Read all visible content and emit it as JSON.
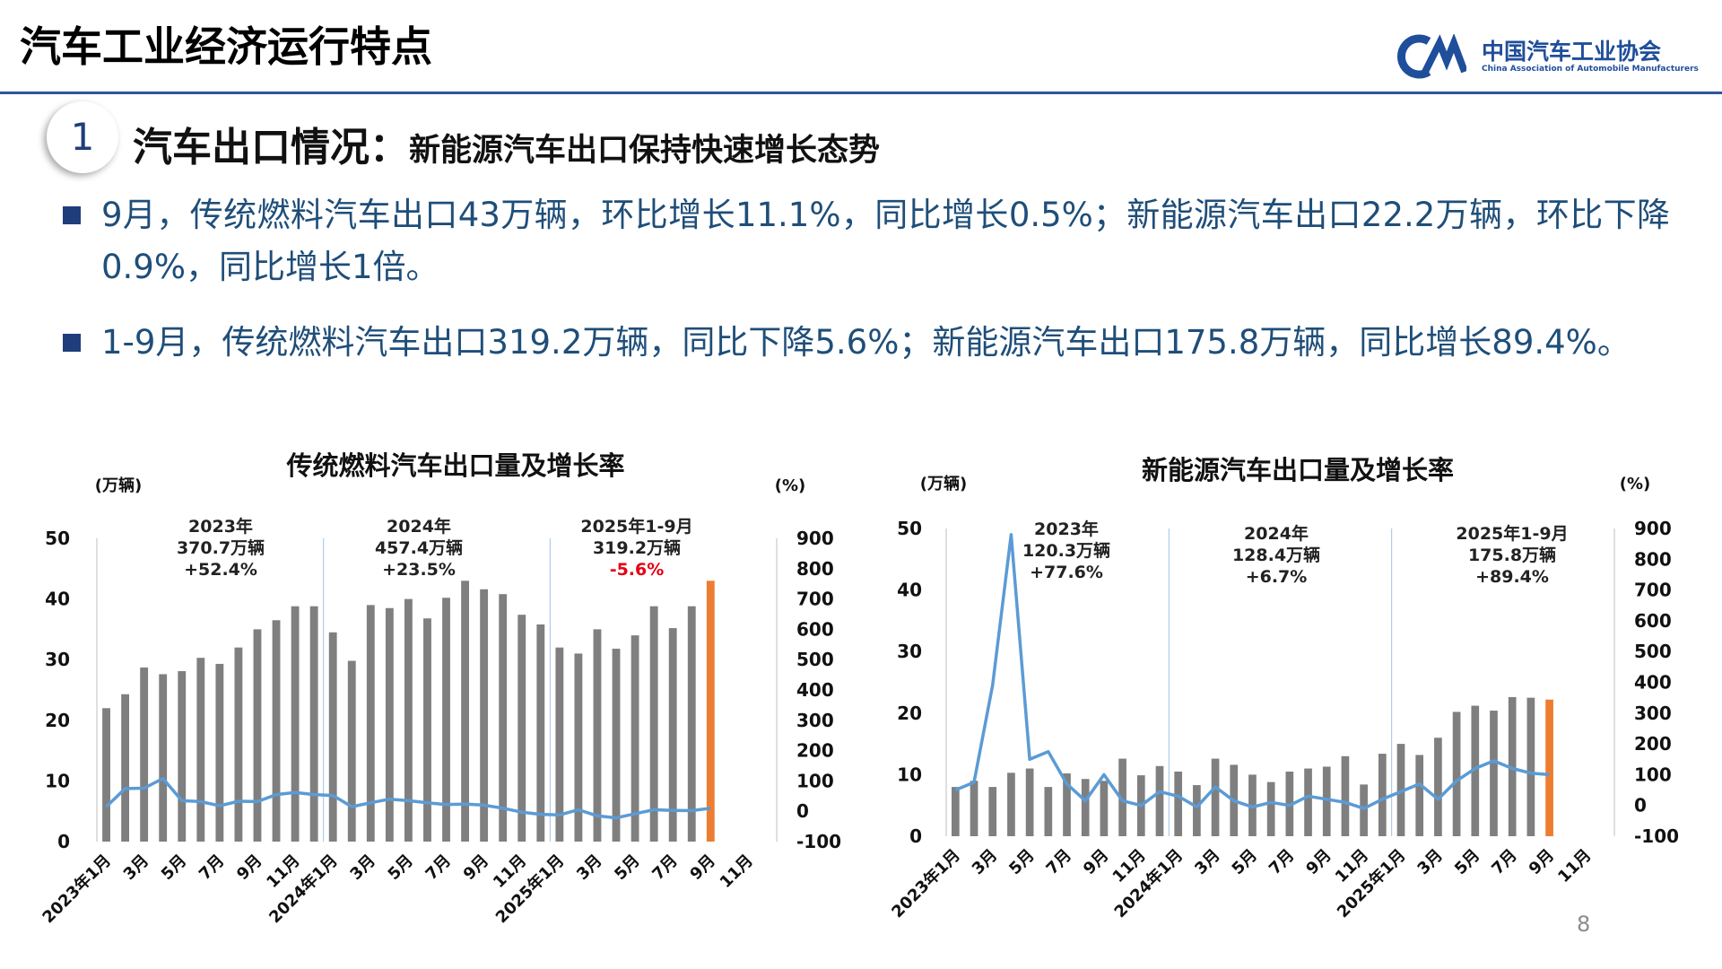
{
  "header": {
    "title": "汽车工业经济运行特点",
    "org_name": "中国汽车工业协会",
    "org_name_en": "China Association of Automobile Manufacturers"
  },
  "section": {
    "number": "1",
    "title": "汽车出口情况：",
    "subtitle": "新能源汽车出口保持快速增长态势"
  },
  "bullets": [
    "9月，传统燃料汽车出口43万辆，环比增长11.1%，同比增长0.5%；新能源汽车出口22.2万辆，环比下降0.9%，同比增长1倍。",
    "1-9月，传统燃料汽车出口319.2万辆，同比下降5.6%；新能源汽车出口175.8万辆，同比增长89.4%。"
  ],
  "page_number": "8",
  "chart_data": [
    {
      "type": "bar-line",
      "title": "传统燃料汽车出口量及增长率",
      "y_unit": "(万辆)",
      "y2_unit": "(%)",
      "categories": [
        "2023年1月",
        null,
        "3月",
        null,
        "5月",
        null,
        "7月",
        null,
        "9月",
        null,
        "11月",
        null,
        "2024年1月",
        null,
        "3月",
        null,
        "5月",
        null,
        "7月",
        null,
        "9月",
        null,
        "11月",
        null,
        "2025年1月",
        null,
        "3月",
        null,
        "5月",
        null,
        "7月",
        null,
        "9月",
        null,
        "11月",
        null
      ],
      "ylim": [
        0,
        50
      ],
      "yticks": [
        0,
        10,
        20,
        30,
        40,
        50
      ],
      "y2lim": [
        -100,
        900
      ],
      "y2ticks": [
        -100,
        0,
        100,
        200,
        300,
        400,
        500,
        600,
        700,
        800,
        900
      ],
      "series": [
        {
          "kind": "bar",
          "color": "#7f7f7f",
          "colors": [
            "#7f7f7f",
            "#7f7f7f",
            "#7f7f7f",
            "#7f7f7f",
            "#7f7f7f",
            "#7f7f7f",
            "#7f7f7f",
            "#7f7f7f",
            "#7f7f7f",
            "#7f7f7f",
            "#7f7f7f",
            "#7f7f7f",
            "#7f7f7f",
            "#7f7f7f",
            "#7f7f7f",
            "#7f7f7f",
            "#7f7f7f",
            "#7f7f7f",
            "#7f7f7f",
            "#7f7f7f",
            "#7f7f7f",
            "#7f7f7f",
            "#7f7f7f",
            "#7f7f7f",
            "#7f7f7f",
            "#7f7f7f",
            "#7f7f7f",
            "#7f7f7f",
            "#7f7f7f",
            "#7f7f7f",
            "#7f7f7f",
            "#7f7f7f",
            "#ed7d31",
            "#7f7f7f",
            "#7f7f7f",
            "#7f7f7f"
          ],
          "values": [
            22,
            24.3,
            28.7,
            27.6,
            28.1,
            30.3,
            29.3,
            32,
            35,
            36.5,
            38.8,
            38.8,
            34.5,
            29.8,
            39,
            38.5,
            40,
            36.8,
            40.2,
            43,
            41.6,
            40.8,
            37.4,
            35.8,
            32,
            31,
            35,
            31.8,
            34,
            38.8,
            35.2,
            38.8,
            43,
            null,
            null,
            null
          ]
        },
        {
          "kind": "line",
          "axis": "y2",
          "color": "#5b9bd5",
          "values": [
            15,
            75,
            76,
            108,
            35,
            32,
            18,
            33,
            32,
            55,
            62,
            55,
            52,
            15,
            28,
            40,
            35,
            28,
            22,
            24,
            20,
            10,
            -3,
            -10,
            -12,
            5,
            -15,
            -22,
            -8,
            5,
            3,
            2,
            10,
            null,
            null,
            null
          ]
        }
      ],
      "annotations": [
        {
          "lines": [
            "2023年",
            "370.7万辆",
            "+52.4%"
          ],
          "colors": [
            "#222",
            "#222",
            "#222"
          ]
        },
        {
          "lines": [
            "2024年",
            "457.4万辆",
            "+23.5%"
          ],
          "colors": [
            "#222",
            "#222",
            "#222"
          ]
        },
        {
          "lines": [
            "2025年1-9月",
            "319.2万辆",
            "-5.6%"
          ],
          "colors": [
            "#222",
            "#222",
            "#e60012"
          ]
        }
      ]
    },
    {
      "type": "bar-line",
      "title": "新能源汽车出口量及增长率",
      "y_unit": "(万辆)",
      "y2_unit": "(%)",
      "categories": [
        "2023年1月",
        null,
        "3月",
        null,
        "5月",
        null,
        "7月",
        null,
        "9月",
        null,
        "11月",
        null,
        "2024年1月",
        null,
        "3月",
        null,
        "5月",
        null,
        "7月",
        null,
        "9月",
        null,
        "11月",
        null,
        "2025年1月",
        null,
        "3月",
        null,
        "5月",
        null,
        "7月",
        null,
        "9月",
        null,
        "11月",
        null
      ],
      "ylim": [
        0,
        50
      ],
      "yticks": [
        0,
        10,
        20,
        30,
        40,
        50
      ],
      "y2lim": [
        -100,
        900
      ],
      "y2ticks": [
        -100,
        0,
        100,
        200,
        300,
        400,
        500,
        600,
        700,
        800,
        900
      ],
      "series": [
        {
          "kind": "bar",
          "color": "#7f7f7f",
          "colors": [
            "#7f7f7f",
            "#7f7f7f",
            "#7f7f7f",
            "#7f7f7f",
            "#7f7f7f",
            "#7f7f7f",
            "#7f7f7f",
            "#7f7f7f",
            "#7f7f7f",
            "#7f7f7f",
            "#7f7f7f",
            "#7f7f7f",
            "#7f7f7f",
            "#7f7f7f",
            "#7f7f7f",
            "#7f7f7f",
            "#7f7f7f",
            "#7f7f7f",
            "#7f7f7f",
            "#7f7f7f",
            "#7f7f7f",
            "#7f7f7f",
            "#7f7f7f",
            "#7f7f7f",
            "#7f7f7f",
            "#7f7f7f",
            "#7f7f7f",
            "#7f7f7f",
            "#7f7f7f",
            "#7f7f7f",
            "#7f7f7f",
            "#7f7f7f",
            "#ed7d31",
            "#7f7f7f",
            "#7f7f7f",
            "#7f7f7f"
          ],
          "values": [
            8,
            9,
            8,
            10.3,
            11,
            8,
            10.2,
            9.3,
            9,
            12.6,
            9.9,
            11.4,
            10.5,
            8.3,
            12.6,
            11.6,
            10,
            8.8,
            10.5,
            11,
            11.3,
            13,
            8.4,
            13.4,
            15,
            13.2,
            16,
            20.2,
            21.2,
            20.4,
            22.6,
            22.5,
            22.2,
            null,
            null,
            null
          ]
        },
        {
          "kind": "line",
          "axis": "y2",
          "color": "#5b9bd5",
          "values": [
            50,
            75,
            390,
            880,
            150,
            175,
            70,
            15,
            100,
            15,
            0,
            45,
            30,
            -5,
            60,
            15,
            -5,
            10,
            0,
            30,
            20,
            10,
            -10,
            20,
            45,
            70,
            20,
            80,
            120,
            145,
            120,
            105,
            100,
            null,
            null,
            null
          ]
        }
      ],
      "annotations": [
        {
          "lines": [
            "2023年",
            "120.3万辆",
            "+77.6%"
          ],
          "colors": [
            "#222",
            "#222",
            "#222"
          ]
        },
        {
          "lines": [
            "2024年",
            "128.4万辆",
            "+6.7%"
          ],
          "colors": [
            "#222",
            "#222",
            "#222"
          ]
        },
        {
          "lines": [
            "2025年1-9月",
            "175.8万辆",
            "+89.4%"
          ],
          "colors": [
            "#222",
            "#222",
            "#222"
          ]
        }
      ]
    }
  ]
}
